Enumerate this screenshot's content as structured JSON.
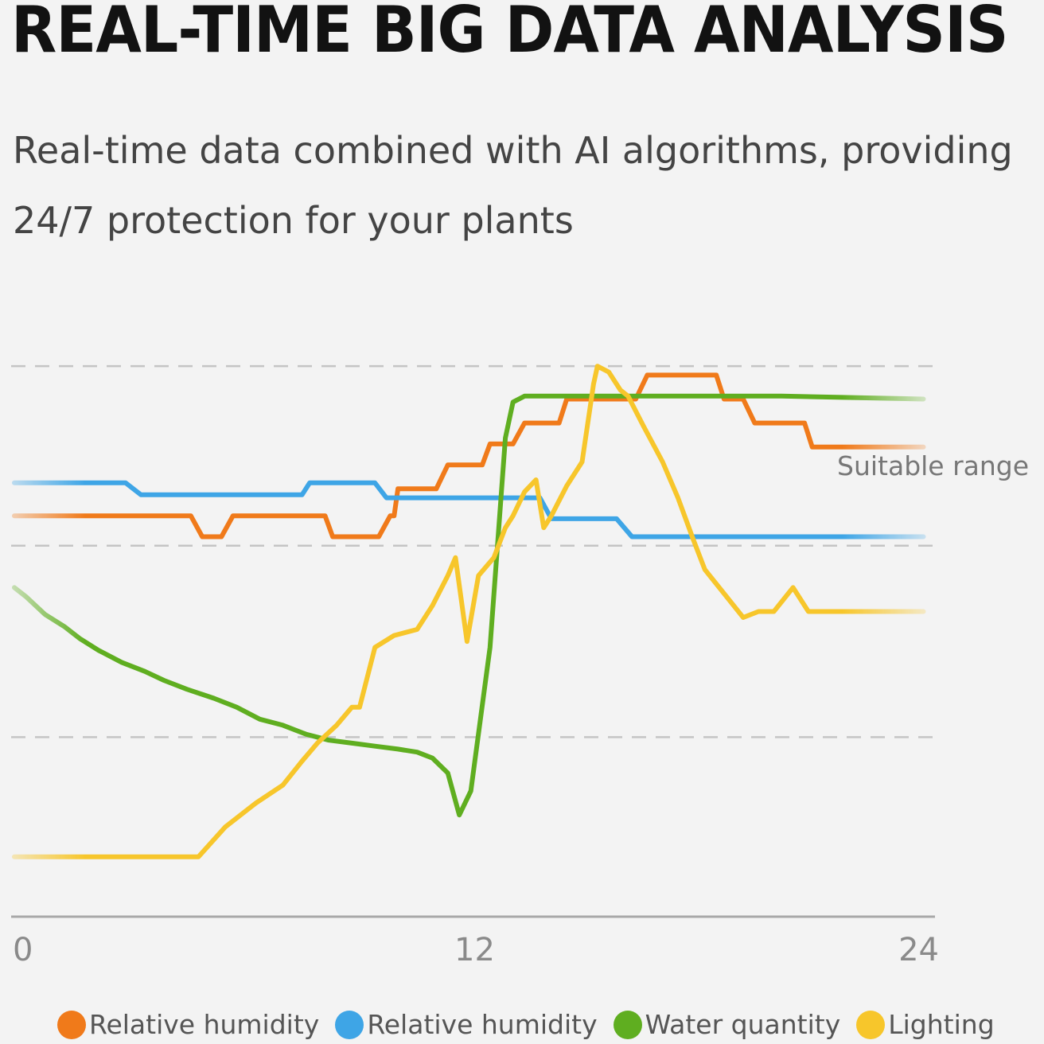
{
  "header": {
    "title": "REAL-TIME BIG DATA ANALYSIS",
    "subtitle_line1": "Real-time data combined with AI algorithms, providing",
    "subtitle_line2": "24/7 protection for your plants"
  },
  "chart_data": {
    "type": "line",
    "xlim": [
      0,
      24
    ],
    "ylim": [
      0,
      100
    ],
    "x_ticks": [
      "0",
      "12",
      "24"
    ],
    "annotation": "Suitable range",
    "gridlines": [
      30,
      62,
      92
    ],
    "series": [
      {
        "name": "Relative humidity",
        "color": "#f07a1a",
        "x": [
          0,
          4.6,
          4.9,
          5.4,
          5.7,
          8.1,
          8.3,
          9.5,
          9.8,
          9.9,
          10.0,
          11.0,
          11.3,
          12.2,
          12.4,
          13.0,
          13.3,
          14.2,
          14.4,
          16.2,
          16.5,
          18.3,
          18.5,
          19.0,
          19.3,
          20.6,
          20.8,
          23.7
        ],
        "y": [
          67,
          67,
          63.5,
          63.5,
          67,
          67,
          63.5,
          63.5,
          67,
          67,
          71.5,
          71.5,
          75.5,
          75.5,
          79,
          79,
          82.5,
          82.5,
          86.5,
          86.5,
          90.5,
          90.5,
          86.5,
          86.5,
          82.5,
          82.5,
          78.5,
          78.5
        ]
      },
      {
        "name": "Relative humidity",
        "color": "#3ea5e6",
        "x": [
          0,
          2.9,
          3.3,
          7.5,
          7.7,
          9.4,
          9.7,
          13.7,
          14.0,
          15.7,
          16.1,
          23.7
        ],
        "y": [
          72.5,
          72.5,
          70.5,
          70.5,
          72.5,
          72.5,
          70,
          70,
          66.5,
          66.5,
          63.5,
          63.5
        ]
      },
      {
        "name": "Water quantity",
        "color": "#5fae20",
        "x": [
          0,
          0.3,
          0.8,
          1.3,
          1.7,
          2.2,
          2.8,
          3.4,
          3.9,
          4.5,
          5.2,
          5.8,
          6.4,
          7.0,
          7.6,
          8.2,
          8.8,
          9.4,
          10.0,
          10.5,
          10.9,
          11.3,
          11.6,
          11.9,
          12.4,
          12.8,
          13.0,
          13.3,
          14.0,
          16.0,
          20.0,
          23.7
        ],
        "y": [
          55,
          53.5,
          50.5,
          48.5,
          46.5,
          44.5,
          42.5,
          41,
          39.5,
          38,
          36.5,
          35,
          33,
          32,
          30.5,
          29.5,
          29,
          28.5,
          28,
          27.5,
          26.5,
          24,
          17,
          21,
          45,
          80,
          86,
          87,
          87,
          87,
          87,
          86.5
        ]
      },
      {
        "name": "Lighting",
        "color": "#f7c62b",
        "x": [
          0,
          2.0,
          4.8,
          5.5,
          6.3,
          7.0,
          7.5,
          7.9,
          8.4,
          8.8,
          9.0,
          9.4,
          9.9,
          10.5,
          10.9,
          11.3,
          11.5,
          11.8,
          12.1,
          12.5,
          12.8,
          13.0,
          13.3,
          13.6,
          13.8,
          14.0,
          14.4,
          14.8,
          15.1,
          15.2,
          15.5,
          15.8,
          16.0,
          16.4,
          16.9,
          17.3,
          17.7,
          18.0,
          18.5,
          19.0,
          19.4,
          19.8,
          20.3,
          20.7,
          21.2,
          21.6,
          22.0,
          23.7
        ],
        "y": [
          10,
          10,
          10,
          15,
          19,
          22,
          26,
          29,
          32,
          35,
          35,
          45,
          47,
          48,
          52,
          57,
          60,
          46,
          57,
          60,
          65,
          67,
          71,
          73,
          65,
          67,
          72,
          76,
          89,
          92,
          91,
          88,
          87,
          82,
          76,
          70,
          63,
          58,
          54,
          50,
          51,
          51,
          55,
          51,
          51,
          51,
          51,
          51
        ]
      }
    ],
    "legend": [
      "Relative humidity",
      "Relative humidity",
      "Water quantity",
      "Lighting"
    ]
  }
}
